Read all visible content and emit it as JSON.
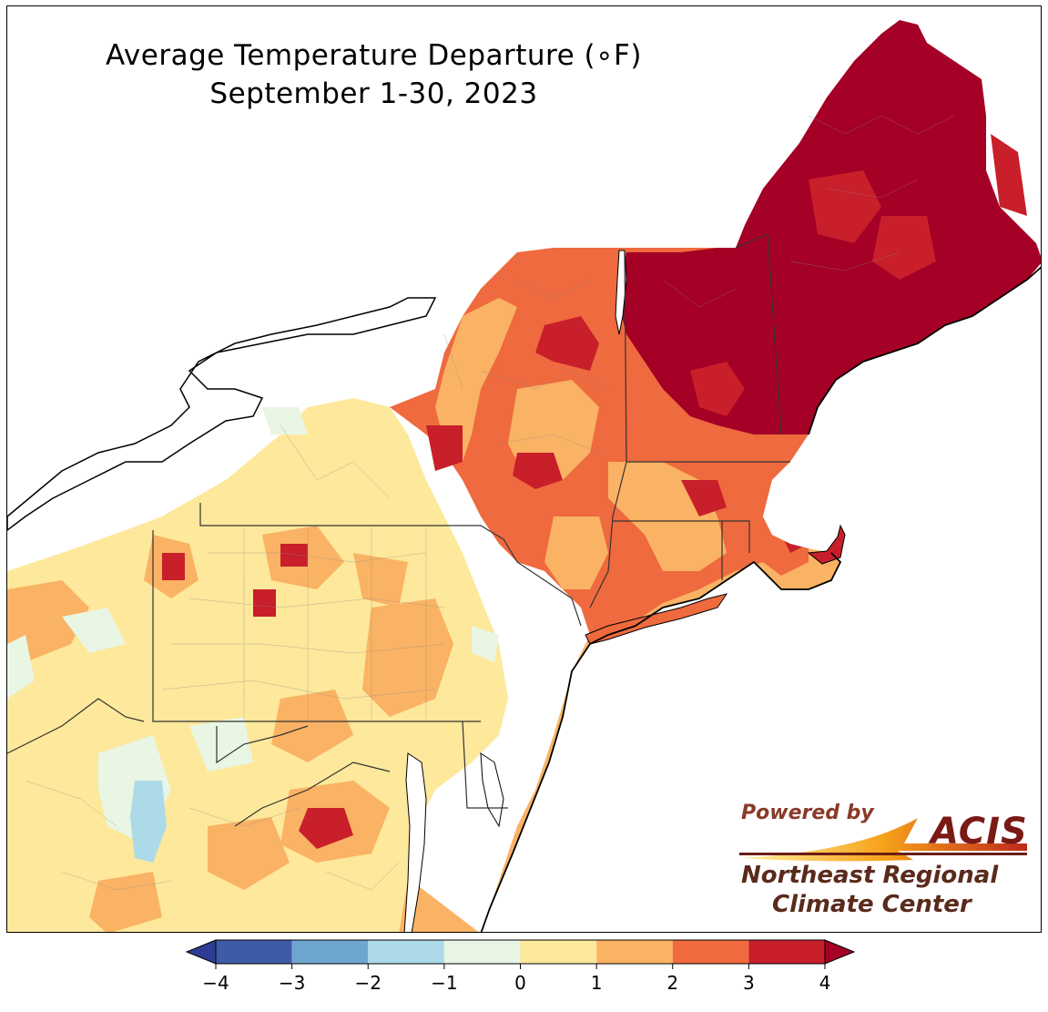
{
  "title": {
    "line1": "Average Temperature Departure (∘F)",
    "line2": "September 1-30, 2023"
  },
  "logo": {
    "powered_by": "Powered by",
    "acis": "ACIS",
    "org_line1": "Northeast Regional",
    "org_line2": "Climate Center"
  },
  "legend": {
    "unit": "°F",
    "ticks": [
      "−4",
      "−3",
      "−2",
      "−1",
      "0",
      "1",
      "2",
      "3",
      "4"
    ],
    "bins": [
      {
        "range": "-4 to -3",
        "color": "#3e5ba8"
      },
      {
        "range": "-3 to -2",
        "color": "#6fa6d0"
      },
      {
        "range": "-2 to -1",
        "color": "#addae8"
      },
      {
        "range": "-1 to 0",
        "color": "#e9f6e3"
      },
      {
        "range": "0 to 1",
        "color": "#fde89b"
      },
      {
        "range": "1 to 2",
        "color": "#fab264"
      },
      {
        "range": "2 to 3",
        "color": "#ef6a3e"
      },
      {
        "range": "3 to 4",
        "color": "#c81f2a"
      }
    ],
    "under_color": "#2e3d93",
    "over_color": "#a50026"
  },
  "map": {
    "region": "Northeast United States",
    "water_color": "#ffffff",
    "border_color": "#000000"
  }
}
